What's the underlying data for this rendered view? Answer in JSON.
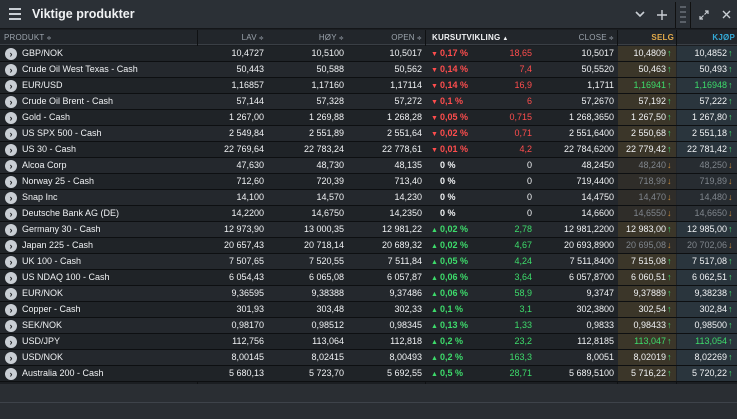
{
  "window": {
    "title": "Viktige produkter"
  },
  "columns": {
    "produkt": "PRODUKT",
    "lav": "LAV",
    "hoy": "HØY",
    "open": "OPEN",
    "kursutvikling": "KURSUTVIKLING",
    "close": "CLOSE",
    "selg": "SELG",
    "kjop": "KJØP"
  },
  "colors": {
    "negative": "#ff4d4d",
    "positive": "#3ddc6b",
    "selg_header": "#e1a94a",
    "kjop_header": "#34a9d6"
  },
  "rows": [
    {
      "name": "GBP/NOK",
      "lav": "10,4727",
      "hoy": "10,5100",
      "open": "10,5017",
      "pct": "0,17 %",
      "abs": "18,65",
      "dir": "down",
      "close": "10,5017",
      "selg": "10,4809",
      "kjop": "10,4852",
      "bs": "up"
    },
    {
      "name": "Crude Oil West Texas - Cash",
      "lav": "50,443",
      "hoy": "50,588",
      "open": "50,562",
      "pct": "0,14 %",
      "abs": "7,4",
      "dir": "down",
      "close": "50,5520",
      "selg": "50,463",
      "kjop": "50,493",
      "bs": "up"
    },
    {
      "name": "EUR/USD",
      "lav": "1,16857",
      "hoy": "1,17160",
      "open": "1,17114",
      "pct": "0,14 %",
      "abs": "16,9",
      "dir": "down",
      "close": "1,1711",
      "selg": "1,16941",
      "kjop": "1,16948",
      "bs": "up",
      "green": true
    },
    {
      "name": "Crude Oil Brent - Cash",
      "lav": "57,144",
      "hoy": "57,328",
      "open": "57,272",
      "pct": "0,1 %",
      "abs": "6",
      "dir": "down",
      "close": "57,2670",
      "selg": "57,192",
      "kjop": "57,222",
      "bs": "up"
    },
    {
      "name": "Gold - Cash",
      "lav": "1 267,00",
      "hoy": "1 269,88",
      "open": "1 268,28",
      "pct": "0,05 %",
      "abs": "0,715",
      "dir": "down",
      "close": "1 268,3650",
      "selg": "1 267,50",
      "kjop": "1 267,80",
      "bs": "up"
    },
    {
      "name": "US SPX 500 - Cash",
      "lav": "2 549,84",
      "hoy": "2 551,89",
      "open": "2 551,64",
      "pct": "0,02 %",
      "abs": "0,71",
      "dir": "down",
      "close": "2 551,6400",
      "selg": "2 550,68",
      "kjop": "2 551,18",
      "bs": "up"
    },
    {
      "name": "US 30 - Cash",
      "lav": "22 769,64",
      "hoy": "22 783,24",
      "open": "22 778,61",
      "pct": "0,01 %",
      "abs": "4,2",
      "dir": "down",
      "close": "22 784,6200",
      "selg": "22 779,42",
      "kjop": "22 781,42",
      "bs": "up"
    },
    {
      "name": "Alcoa Corp",
      "lav": "47,630",
      "hoy": "48,730",
      "open": "48,135",
      "pct": "0 %",
      "abs": "0",
      "dir": "none",
      "close": "48,2450",
      "selg": "48,240",
      "kjop": "48,250",
      "bs": "dim"
    },
    {
      "name": "Norway 25 - Cash",
      "lav": "712,60",
      "hoy": "720,39",
      "open": "713,40",
      "pct": "0 %",
      "abs": "0",
      "dir": "none",
      "close": "719,4400",
      "selg": "718,99",
      "kjop": "719,89",
      "bs": "dim"
    },
    {
      "name": "Snap Inc",
      "lav": "14,100",
      "hoy": "14,570",
      "open": "14,230",
      "pct": "0 %",
      "abs": "0",
      "dir": "none",
      "close": "14,4750",
      "selg": "14,470",
      "kjop": "14,480",
      "bs": "dim"
    },
    {
      "name": "Deutsche Bank AG (DE)",
      "lav": "14,2200",
      "hoy": "14,6750",
      "open": "14,2350",
      "pct": "0 %",
      "abs": "0",
      "dir": "none",
      "close": "14,6600",
      "selg": "14,6550",
      "kjop": "14,6650",
      "bs": "dim"
    },
    {
      "name": "Germany 30 - Cash",
      "lav": "12 973,90",
      "hoy": "13 000,35",
      "open": "12 981,22",
      "pct": "0,02 %",
      "abs": "2,78",
      "dir": "up",
      "close": "12 981,2200",
      "selg": "12 983,00",
      "kjop": "12 985,00",
      "bs": "up"
    },
    {
      "name": "Japan 225 - Cash",
      "lav": "20 657,43",
      "hoy": "20 718,14",
      "open": "20 689,32",
      "pct": "0,02 %",
      "abs": "4,67",
      "dir": "up",
      "close": "20 693,8900",
      "selg": "20 695,08",
      "kjop": "20 702,06",
      "bs": "dim"
    },
    {
      "name": "UK 100 - Cash",
      "lav": "7 507,65",
      "hoy": "7 520,55",
      "open": "7 511,84",
      "pct": "0,05 %",
      "abs": "4,24",
      "dir": "up",
      "close": "7 511,8400",
      "selg": "7 515,08",
      "kjop": "7 517,08",
      "bs": "up"
    },
    {
      "name": "US NDAQ 100 - Cash",
      "lav": "6 054,43",
      "hoy": "6 065,08",
      "open": "6 057,87",
      "pct": "0,06 %",
      "abs": "3,64",
      "dir": "up",
      "close": "6 057,8700",
      "selg": "6 060,51",
      "kjop": "6 062,51",
      "bs": "up"
    },
    {
      "name": "EUR/NOK",
      "lav": "9,36595",
      "hoy": "9,38388",
      "open": "9,37486",
      "pct": "0,06 %",
      "abs": "58,9",
      "dir": "up",
      "close": "9,3747",
      "selg": "9,37889",
      "kjop": "9,38238",
      "bs": "up"
    },
    {
      "name": "Copper - Cash",
      "lav": "301,93",
      "hoy": "303,48",
      "open": "302,33",
      "pct": "0,1 %",
      "abs": "3,1",
      "dir": "up",
      "close": "302,3800",
      "selg": "302,54",
      "kjop": "302,84",
      "bs": "up"
    },
    {
      "name": "SEK/NOK",
      "lav": "0,98170",
      "hoy": "0,98512",
      "open": "0,98345",
      "pct": "0,13 %",
      "abs": "1,33",
      "dir": "up",
      "close": "0,9833",
      "selg": "0,98433",
      "kjop": "0,98500",
      "bs": "up"
    },
    {
      "name": "USD/JPY",
      "lav": "112,756",
      "hoy": "113,064",
      "open": "112,818",
      "pct": "0,2 %",
      "abs": "23,2",
      "dir": "up",
      "close": "112,8185",
      "selg": "113,047",
      "kjop": "113,054",
      "bs": "up",
      "green": true
    },
    {
      "name": "USD/NOK",
      "lav": "8,00145",
      "hoy": "8,02415",
      "open": "8,00493",
      "pct": "0,2 %",
      "abs": "163,3",
      "dir": "up",
      "close": "8,0051",
      "selg": "8,02019",
      "kjop": "8,02269",
      "bs": "up"
    },
    {
      "name": "Australia 200 - Cash",
      "lav": "5 680,13",
      "hoy": "5 723,70",
      "open": "5 692,55",
      "pct": "0,5 %",
      "abs": "28,71",
      "dir": "up",
      "close": "5 689,5100",
      "selg": "5 716,22",
      "kjop": "5 720,22",
      "bs": "up"
    }
  ]
}
